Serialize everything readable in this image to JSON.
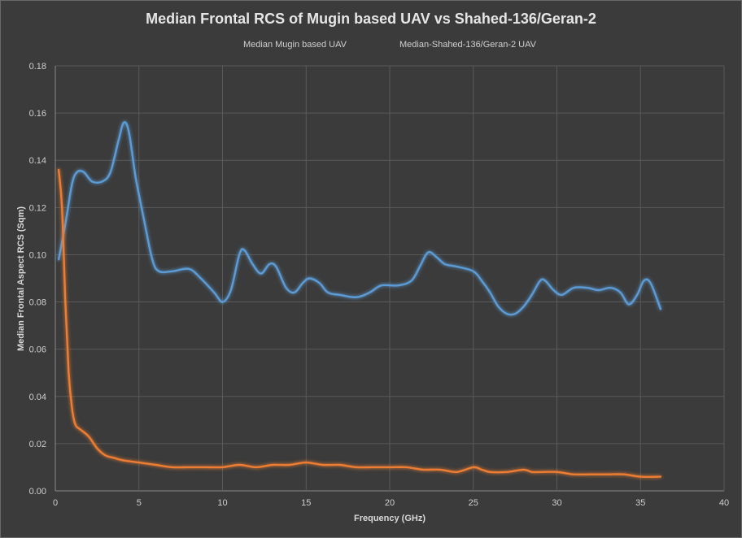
{
  "chart_data": {
    "type": "line",
    "title": "Median Frontal RCS of Mugin based UAV vs Shahed-136/Geran-2",
    "xlabel": "Frequency  (GHz)",
    "ylabel": "Median Frontal Aspect RCS (Sqm)",
    "xlim": [
      0,
      40
    ],
    "ylim": [
      0,
      0.18
    ],
    "x_ticks": [
      "0",
      "5",
      "10",
      "15",
      "20",
      "25",
      "30",
      "35",
      "40"
    ],
    "y_ticks": [
      "0.00",
      "0.02",
      "0.04",
      "0.06",
      "0.08",
      "0.10",
      "0.12",
      "0.14",
      "0.16",
      "0.18"
    ],
    "grid": true,
    "legend_position": "top",
    "series": [
      {
        "name": "Median Mugin based UAV",
        "color": "#5b9bd5",
        "x": [
          0.2,
          0.6,
          1.0,
          1.3,
          1.7,
          2.2,
          2.8,
          3.3,
          3.8,
          4.1,
          4.4,
          4.8,
          5.3,
          5.8,
          6.2,
          7.0,
          8.0,
          8.7,
          9.5,
          10.0,
          10.5,
          11.0,
          11.3,
          11.8,
          12.3,
          12.8,
          13.2,
          13.8,
          14.3,
          14.8,
          15.2,
          15.8,
          16.3,
          17.0,
          18.0,
          18.8,
          19.5,
          20.5,
          21.3,
          21.8,
          22.3,
          22.8,
          23.3,
          24.0,
          25.0,
          25.5,
          26.0,
          26.5,
          27.0,
          27.5,
          28.0,
          28.5,
          29.0,
          29.3,
          29.8,
          30.3,
          31.0,
          31.8,
          32.5,
          33.2,
          33.8,
          34.3,
          34.8,
          35.2,
          35.6,
          36.2
        ],
        "y": [
          0.098,
          0.113,
          0.13,
          0.135,
          0.135,
          0.131,
          0.131,
          0.135,
          0.149,
          0.156,
          0.152,
          0.133,
          0.115,
          0.098,
          0.093,
          0.093,
          0.094,
          0.09,
          0.084,
          0.08,
          0.085,
          0.1,
          0.102,
          0.096,
          0.092,
          0.096,
          0.095,
          0.086,
          0.084,
          0.088,
          0.09,
          0.088,
          0.084,
          0.083,
          0.082,
          0.084,
          0.087,
          0.087,
          0.089,
          0.095,
          0.101,
          0.099,
          0.096,
          0.095,
          0.093,
          0.089,
          0.084,
          0.078,
          0.075,
          0.075,
          0.078,
          0.083,
          0.089,
          0.089,
          0.085,
          0.083,
          0.086,
          0.086,
          0.085,
          0.086,
          0.084,
          0.079,
          0.083,
          0.089,
          0.088,
          0.077
        ]
      },
      {
        "name": "Median-Shahed-136/Geran-2 UAV",
        "color": "#ed7d31",
        "x": [
          0.2,
          0.4,
          0.6,
          0.8,
          1.0,
          1.2,
          1.5,
          2.0,
          2.5,
          3.0,
          3.5,
          4.0,
          5.0,
          6.0,
          7.0,
          8.0,
          9.0,
          10.0,
          11.0,
          12.0,
          13.0,
          14.0,
          15.0,
          16.0,
          17.0,
          18.0,
          19.0,
          20.0,
          21.0,
          22.0,
          23.0,
          24.0,
          25.0,
          25.5,
          26.0,
          27.0,
          28.0,
          28.5,
          29.0,
          30.0,
          31.0,
          32.0,
          33.0,
          34.0,
          35.0,
          36.2
        ],
        "y": [
          0.136,
          0.12,
          0.08,
          0.05,
          0.035,
          0.028,
          0.026,
          0.023,
          0.018,
          0.015,
          0.014,
          0.013,
          0.012,
          0.011,
          0.01,
          0.01,
          0.01,
          0.01,
          0.011,
          0.01,
          0.011,
          0.011,
          0.012,
          0.011,
          0.011,
          0.01,
          0.01,
          0.01,
          0.01,
          0.009,
          0.009,
          0.008,
          0.01,
          0.009,
          0.008,
          0.008,
          0.009,
          0.008,
          0.008,
          0.008,
          0.007,
          0.007,
          0.007,
          0.007,
          0.006,
          0.006
        ]
      }
    ]
  }
}
